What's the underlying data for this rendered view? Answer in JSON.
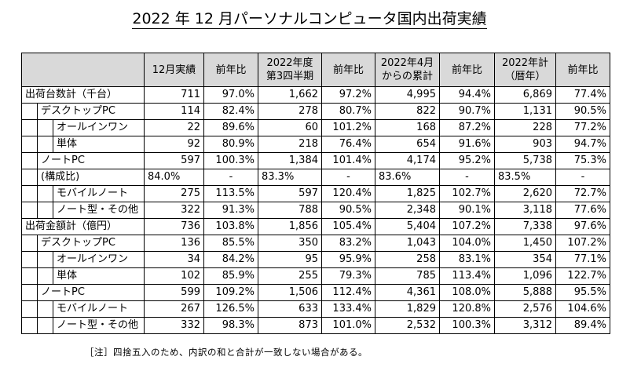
{
  "title": "2022 年 12 月パーソナルコンピュータ国内出荷実績",
  "headers": [
    [
      "12月実績"
    ],
    [
      "前年比"
    ],
    [
      "2022年度",
      "第3四半期"
    ],
    [
      "前年比"
    ],
    [
      "2022年4月",
      "からの累計"
    ],
    [
      "前年比"
    ],
    [
      "2022年計",
      "（暦年）"
    ],
    [
      "前年比"
    ]
  ],
  "rows": [
    {
      "level": 0,
      "label": "出荷台数計（千台）",
      "values": [
        "711",
        "97.0%",
        "1,662",
        "97.2%",
        "4,995",
        "94.4%",
        "6,869",
        "77.4%"
      ]
    },
    {
      "level": 1,
      "label": "デスクトップPC",
      "values": [
        "114",
        "82.4%",
        "278",
        "80.7%",
        "822",
        "90.7%",
        "1,131",
        "90.5%"
      ]
    },
    {
      "level": 2,
      "label": "オールインワン",
      "values": [
        "22",
        "89.6%",
        "60",
        "101.2%",
        "168",
        "87.2%",
        "228",
        "77.2%"
      ]
    },
    {
      "level": 2,
      "label": "単体",
      "values": [
        "92",
        "80.9%",
        "218",
        "76.4%",
        "654",
        "91.6%",
        "903",
        "94.7%"
      ]
    },
    {
      "level": 1,
      "label": "ノートPC",
      "values": [
        "597",
        "100.3%",
        "1,384",
        "101.4%",
        "4,174",
        "95.2%",
        "5,738",
        "75.3%"
      ]
    },
    {
      "level": 1,
      "label": "(構成比)",
      "note": true,
      "values": [
        "84.0%",
        "-",
        "83.3%",
        "-",
        "83.6%",
        "-",
        "83.5%",
        "-"
      ]
    },
    {
      "level": 2,
      "label": "モバイルノート",
      "values": [
        "275",
        "113.5%",
        "597",
        "120.4%",
        "1,825",
        "102.7%",
        "2,620",
        "72.7%"
      ]
    },
    {
      "level": 2,
      "label": "ノート型・その他",
      "values": [
        "322",
        "91.3%",
        "788",
        "90.5%",
        "2,348",
        "90.1%",
        "3,118",
        "77.6%"
      ]
    },
    {
      "level": 0,
      "label": "出荷金額計（億円）",
      "values": [
        "736",
        "103.8%",
        "1,856",
        "105.4%",
        "5,404",
        "107.2%",
        "7,338",
        "97.6%"
      ]
    },
    {
      "level": 1,
      "label": "デスクトップPC",
      "values": [
        "136",
        "85.5%",
        "350",
        "83.2%",
        "1,043",
        "104.0%",
        "1,450",
        "107.2%"
      ]
    },
    {
      "level": 2,
      "label": "オールインワン",
      "values": [
        "34",
        "84.2%",
        "95",
        "95.9%",
        "258",
        "83.1%",
        "354",
        "77.1%"
      ]
    },
    {
      "level": 2,
      "label": "単体",
      "values": [
        "102",
        "85.9%",
        "255",
        "79.3%",
        "785",
        "113.4%",
        "1,096",
        "122.7%"
      ]
    },
    {
      "level": 1,
      "label": "ノートPC",
      "values": [
        "599",
        "109.2%",
        "1,506",
        "112.4%",
        "4,361",
        "108.0%",
        "5,888",
        "95.5%"
      ]
    },
    {
      "level": 2,
      "label": "モバイルノート",
      "values": [
        "267",
        "126.5%",
        "633",
        "133.4%",
        "1,829",
        "120.8%",
        "2,576",
        "104.6%"
      ]
    },
    {
      "level": 2,
      "label": "ノート型・その他",
      "values": [
        "332",
        "98.3%",
        "873",
        "101.0%",
        "2,532",
        "100.3%",
        "3,312",
        "89.4%"
      ]
    }
  ],
  "footnote": "［注］四捨五入のため、内訳の和と合計が一致しない場合がある。"
}
